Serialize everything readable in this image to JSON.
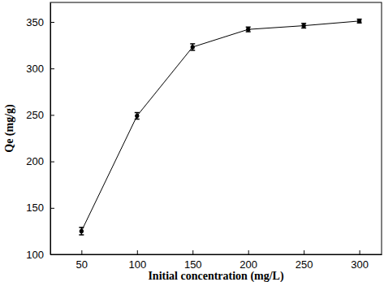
{
  "chart_data": {
    "type": "line",
    "x_label": "Initial concentration (mg/L)",
    "y_label": "Qe (mg/g)",
    "x": [
      50,
      100,
      150,
      200,
      250,
      300
    ],
    "values": [
      125,
      249,
      323,
      342,
      346,
      351
    ],
    "errors": [
      4,
      3.5,
      3.5,
      2.5,
      2.5,
      2
    ],
    "color": "#000000",
    "marker": "circle",
    "line_style": "solid",
    "xlim": [
      22,
      320
    ],
    "ylim": [
      100,
      371
    ],
    "xticks": [
      50,
      100,
      150,
      200,
      250,
      300
    ],
    "yticks": [
      100,
      150,
      200,
      250,
      300,
      350
    ],
    "grid": false
  }
}
